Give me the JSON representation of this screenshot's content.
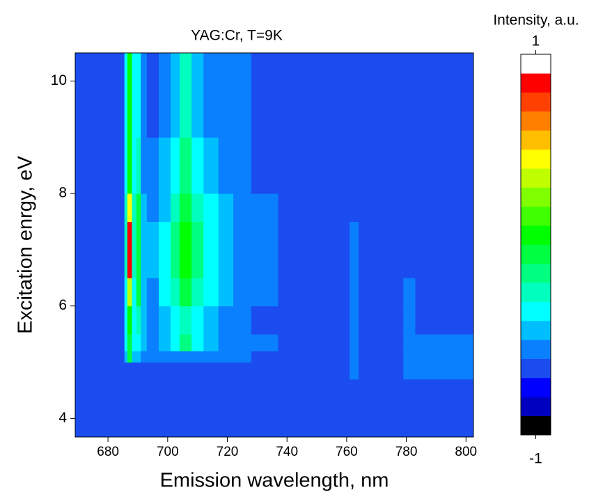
{
  "chart_data": {
    "type": "contour",
    "title": "YAG:Cr, T=9K",
    "x_label": "Emission wavelength, nm",
    "y_label": "Excitation enrgy, eV",
    "colorbar_label": "Intensity, a.u.",
    "xlim": [
      669,
      802.5
    ],
    "ylim": [
      3.67,
      10.5
    ],
    "xticks": [
      680,
      700,
      720,
      740,
      760,
      780,
      800
    ],
    "yticks": [
      4,
      6,
      8,
      10
    ],
    "xbins": [
      669,
      685.5,
      686.5,
      688,
      689.5,
      691,
      693,
      697,
      701,
      704,
      708,
      712,
      717,
      722,
      728,
      737,
      761,
      764,
      779,
      783,
      790,
      802.5
    ],
    "ybins": [
      3.67,
      4.7,
      5.0,
      5.2,
      5.5,
      6.0,
      6.5,
      7.5,
      8.0,
      9.0,
      10.5
    ],
    "z": [
      [
        -0.65,
        -0.65,
        -0.65,
        -0.65,
        -0.65,
        -0.65,
        -0.65,
        -0.65,
        -0.65,
        -0.65,
        -0.65,
        -0.65,
        -0.65,
        -0.65,
        -0.65,
        -0.65,
        -0.65,
        -0.65,
        -0.65,
        -0.65,
        -0.65
      ],
      [
        -0.65,
        -0.65,
        -0.65,
        -0.65,
        -0.65,
        -0.65,
        -0.65,
        -0.65,
        -0.65,
        -0.65,
        -0.65,
        -0.65,
        -0.65,
        -0.65,
        -0.65,
        -0.65,
        -0.55,
        -0.65,
        -0.55,
        -0.55,
        -0.55
      ],
      [
        -0.65,
        -0.45,
        -0.1,
        -0.45,
        -0.45,
        -0.55,
        -0.55,
        -0.55,
        -0.55,
        -0.55,
        -0.55,
        -0.55,
        -0.55,
        -0.55,
        -0.65,
        -0.65,
        -0.55,
        -0.65,
        -0.55,
        -0.55,
        -0.55
      ],
      [
        -0.65,
        -0.35,
        -0.05,
        -0.35,
        -0.35,
        -0.45,
        -0.55,
        -0.45,
        -0.35,
        -0.15,
        -0.35,
        -0.45,
        -0.55,
        -0.55,
        -0.55,
        -0.65,
        -0.55,
        -0.65,
        -0.55,
        -0.55,
        -0.55
      ],
      [
        -0.65,
        -0.35,
        0.05,
        -0.35,
        -0.25,
        -0.45,
        -0.55,
        -0.45,
        -0.35,
        -0.25,
        -0.35,
        -0.45,
        -0.55,
        -0.55,
        -0.65,
        -0.65,
        -0.55,
        -0.65,
        -0.55,
        -0.65,
        -0.65
      ],
      [
        -0.65,
        -0.35,
        0.3,
        -0.35,
        -0.1,
        -0.45,
        -0.55,
        -0.35,
        -0.25,
        -0.05,
        -0.25,
        -0.35,
        -0.45,
        -0.55,
        -0.55,
        -0.65,
        -0.55,
        -0.65,
        -0.55,
        -0.65,
        -0.65
      ],
      [
        -0.65,
        -0.3,
        0.85,
        -0.3,
        -0.1,
        -0.45,
        -0.45,
        -0.35,
        -0.15,
        0.05,
        -0.15,
        -0.35,
        -0.45,
        -0.55,
        -0.55,
        -0.65,
        -0.55,
        -0.65,
        -0.65,
        -0.65,
        -0.65
      ],
      [
        -0.65,
        -0.3,
        0.4,
        -0.3,
        -0.1,
        -0.45,
        -0.55,
        -0.45,
        -0.25,
        -0.05,
        -0.25,
        -0.35,
        -0.45,
        -0.55,
        -0.55,
        -0.65,
        -0.65,
        -0.65,
        -0.65,
        -0.65,
        -0.65
      ],
      [
        -0.65,
        -0.35,
        0.05,
        -0.35,
        -0.25,
        -0.55,
        -0.55,
        -0.45,
        -0.35,
        -0.15,
        -0.35,
        -0.45,
        -0.55,
        -0.55,
        -0.65,
        -0.65,
        -0.65,
        -0.65,
        -0.65,
        -0.65,
        -0.65
      ],
      [
        -0.65,
        -0.35,
        0.05,
        -0.35,
        -0.35,
        -0.55,
        -0.65,
        -0.55,
        -0.45,
        -0.25,
        -0.45,
        -0.55,
        -0.55,
        -0.55,
        -0.65,
        -0.65,
        -0.65,
        -0.65,
        -0.65,
        -0.65,
        -0.65
      ]
    ],
    "levels": [
      -1,
      -0.9,
      -0.8,
      -0.7,
      -0.6,
      -0.5,
      -0.4,
      -0.3,
      -0.2,
      -0.1,
      0,
      0.1,
      0.2,
      0.3,
      0.4,
      0.5,
      0.6,
      0.7,
      0.8,
      0.9,
      1
    ],
    "colors": [
      "#000000",
      "#0000c0",
      "#0000ff",
      "#1a4cf0",
      "#0a80ff",
      "#00bfff",
      "#00ffff",
      "#00ffbf",
      "#00ff80",
      "#00ff40",
      "#00ff00",
      "#40ff00",
      "#80ff00",
      "#bfff00",
      "#ffff00",
      "#ffbf00",
      "#ff8000",
      "#ff4000",
      "#ff0000",
      "#ffffff"
    ],
    "cbticks": [
      -1,
      1
    ]
  }
}
